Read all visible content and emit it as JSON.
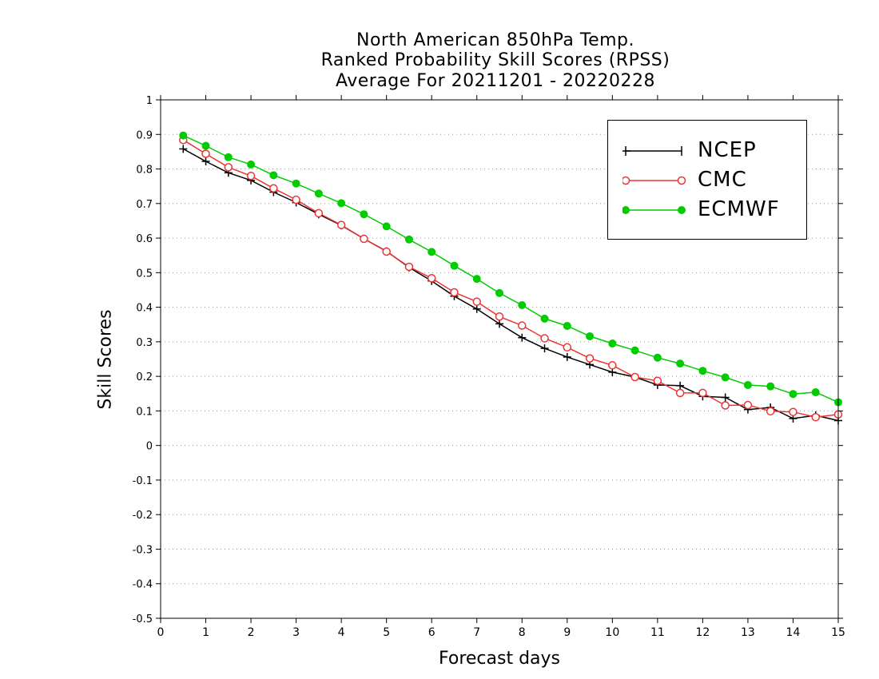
{
  "title": {
    "line1": "North American 850hPa Temp.",
    "line2": "Ranked Probability Skill Scores (RPSS)",
    "line3": "Average For 20211201 - 20220228"
  },
  "chart_data": {
    "type": "line",
    "title": "North American 850hPa Temp. Ranked Probability Skill Scores (RPSS) Average For 20211201 - 20220228",
    "xlabel": "Forecast days",
    "ylabel": "Skill Scores",
    "xlim": [
      0,
      15
    ],
    "ylim": [
      -0.5,
      1
    ],
    "xticks": [
      0,
      1,
      2,
      3,
      4,
      5,
      6,
      7,
      8,
      9,
      10,
      11,
      12,
      13,
      14,
      15
    ],
    "yticks": [
      -0.5,
      -0.4,
      -0.3,
      -0.2,
      -0.1,
      0,
      0.1,
      0.2,
      0.3,
      0.4,
      0.5,
      0.6,
      0.7,
      0.8,
      0.9,
      1
    ],
    "ytick_labels": [
      "-0.5",
      "-0.4",
      "-0.3",
      "-0.2",
      "-0.1",
      "0",
      "0.1",
      "0.2",
      "0.3",
      "0.4",
      "0.5",
      "0.6",
      "0.7",
      "0.8",
      "0.9",
      "1"
    ],
    "grid": "horizontal dotted",
    "legend_position": "top-right",
    "x": [
      0.5,
      1,
      1.5,
      2,
      2.5,
      3,
      3.5,
      4,
      4.5,
      5,
      5.5,
      6,
      6.5,
      7,
      7.5,
      8,
      8.5,
      9,
      9.5,
      10,
      10.5,
      11,
      11.5,
      12,
      12.5,
      13,
      13.5,
      14,
      14.5,
      15
    ],
    "series": [
      {
        "name": "NCEP",
        "color": "#000000",
        "marker": "plus",
        "values": [
          0.858,
          0.822,
          0.789,
          0.767,
          0.733,
          0.703,
          0.669,
          0.637,
          0.598,
          0.562,
          0.515,
          0.476,
          0.432,
          0.395,
          0.352,
          0.312,
          0.281,
          0.256,
          0.234,
          0.212,
          0.198,
          0.175,
          0.173,
          0.142,
          0.139,
          0.104,
          0.11,
          0.078,
          0.087,
          0.072
        ]
      },
      {
        "name": "CMC",
        "color": "#ee3333",
        "marker": "open-circle",
        "values": [
          0.884,
          0.844,
          0.805,
          0.78,
          0.744,
          0.711,
          0.672,
          0.638,
          0.598,
          0.561,
          0.517,
          0.484,
          0.443,
          0.416,
          0.373,
          0.347,
          0.31,
          0.284,
          0.252,
          0.232,
          0.198,
          0.187,
          0.152,
          0.152,
          0.116,
          0.117,
          0.099,
          0.097,
          0.082,
          0.09
        ]
      },
      {
        "name": "ECMWF",
        "color": "#00cc00",
        "marker": "filled-circle",
        "values": [
          0.897,
          0.867,
          0.834,
          0.813,
          0.782,
          0.758,
          0.729,
          0.701,
          0.669,
          0.634,
          0.596,
          0.56,
          0.52,
          0.482,
          0.441,
          0.406,
          0.367,
          0.346,
          0.316,
          0.295,
          0.275,
          0.254,
          0.237,
          0.216,
          0.197,
          0.175,
          0.171,
          0.149,
          0.154,
          0.125
        ]
      }
    ]
  }
}
